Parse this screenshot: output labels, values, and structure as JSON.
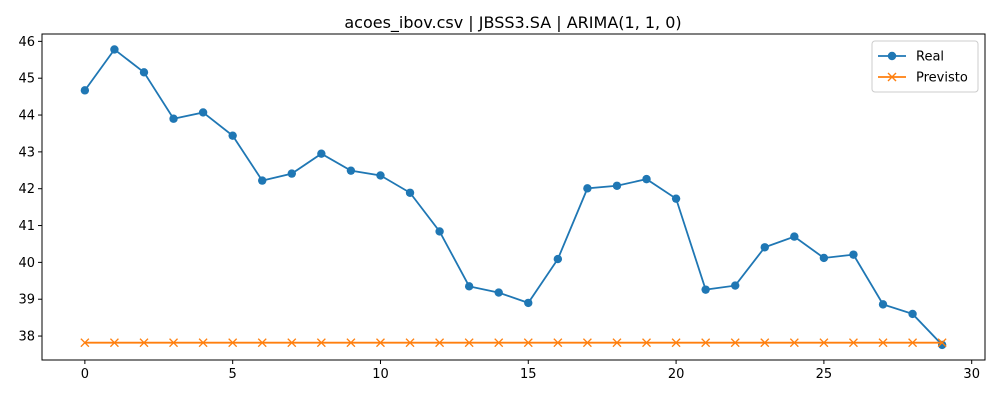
{
  "chart_data": {
    "type": "line",
    "title": "acoes_ibov.csv | JBSS3.SA | ARIMA(1, 1, 0)",
    "xlabel": "",
    "ylabel": "",
    "xlim": [
      -1.45,
      30.45
    ],
    "ylim": [
      37.35,
      46.2
    ],
    "x_ticks": [
      0,
      5,
      10,
      15,
      20,
      25,
      30
    ],
    "y_ticks": [
      38,
      39,
      40,
      41,
      42,
      43,
      44,
      45,
      46
    ],
    "grid": false,
    "legend_position": "top-right",
    "x": [
      0,
      1,
      2,
      3,
      4,
      5,
      6,
      7,
      8,
      9,
      10,
      11,
      12,
      13,
      14,
      15,
      16,
      17,
      18,
      19,
      20,
      21,
      22,
      23,
      24,
      25,
      26,
      27,
      28,
      29
    ],
    "series": [
      {
        "name": "Real",
        "color": "#1f77b4",
        "marker": "circle",
        "values": [
          44.67,
          45.78,
          45.16,
          43.9,
          44.07,
          43.44,
          42.22,
          42.41,
          42.95,
          42.49,
          42.36,
          41.89,
          40.84,
          39.35,
          39.18,
          38.9,
          40.09,
          42.01,
          42.08,
          42.26,
          41.73,
          39.26,
          39.37,
          40.41,
          40.7,
          40.12,
          40.21,
          38.86,
          38.6,
          37.76
        ]
      },
      {
        "name": "Previsto",
        "color": "#ff7f0e",
        "marker": "x",
        "values": [
          37.82,
          37.82,
          37.82,
          37.82,
          37.82,
          37.82,
          37.82,
          37.82,
          37.82,
          37.82,
          37.82,
          37.82,
          37.82,
          37.82,
          37.82,
          37.82,
          37.82,
          37.82,
          37.82,
          37.82,
          37.82,
          37.82,
          37.82,
          37.82,
          37.82,
          37.82,
          37.82,
          37.82,
          37.82,
          37.82
        ]
      }
    ]
  }
}
